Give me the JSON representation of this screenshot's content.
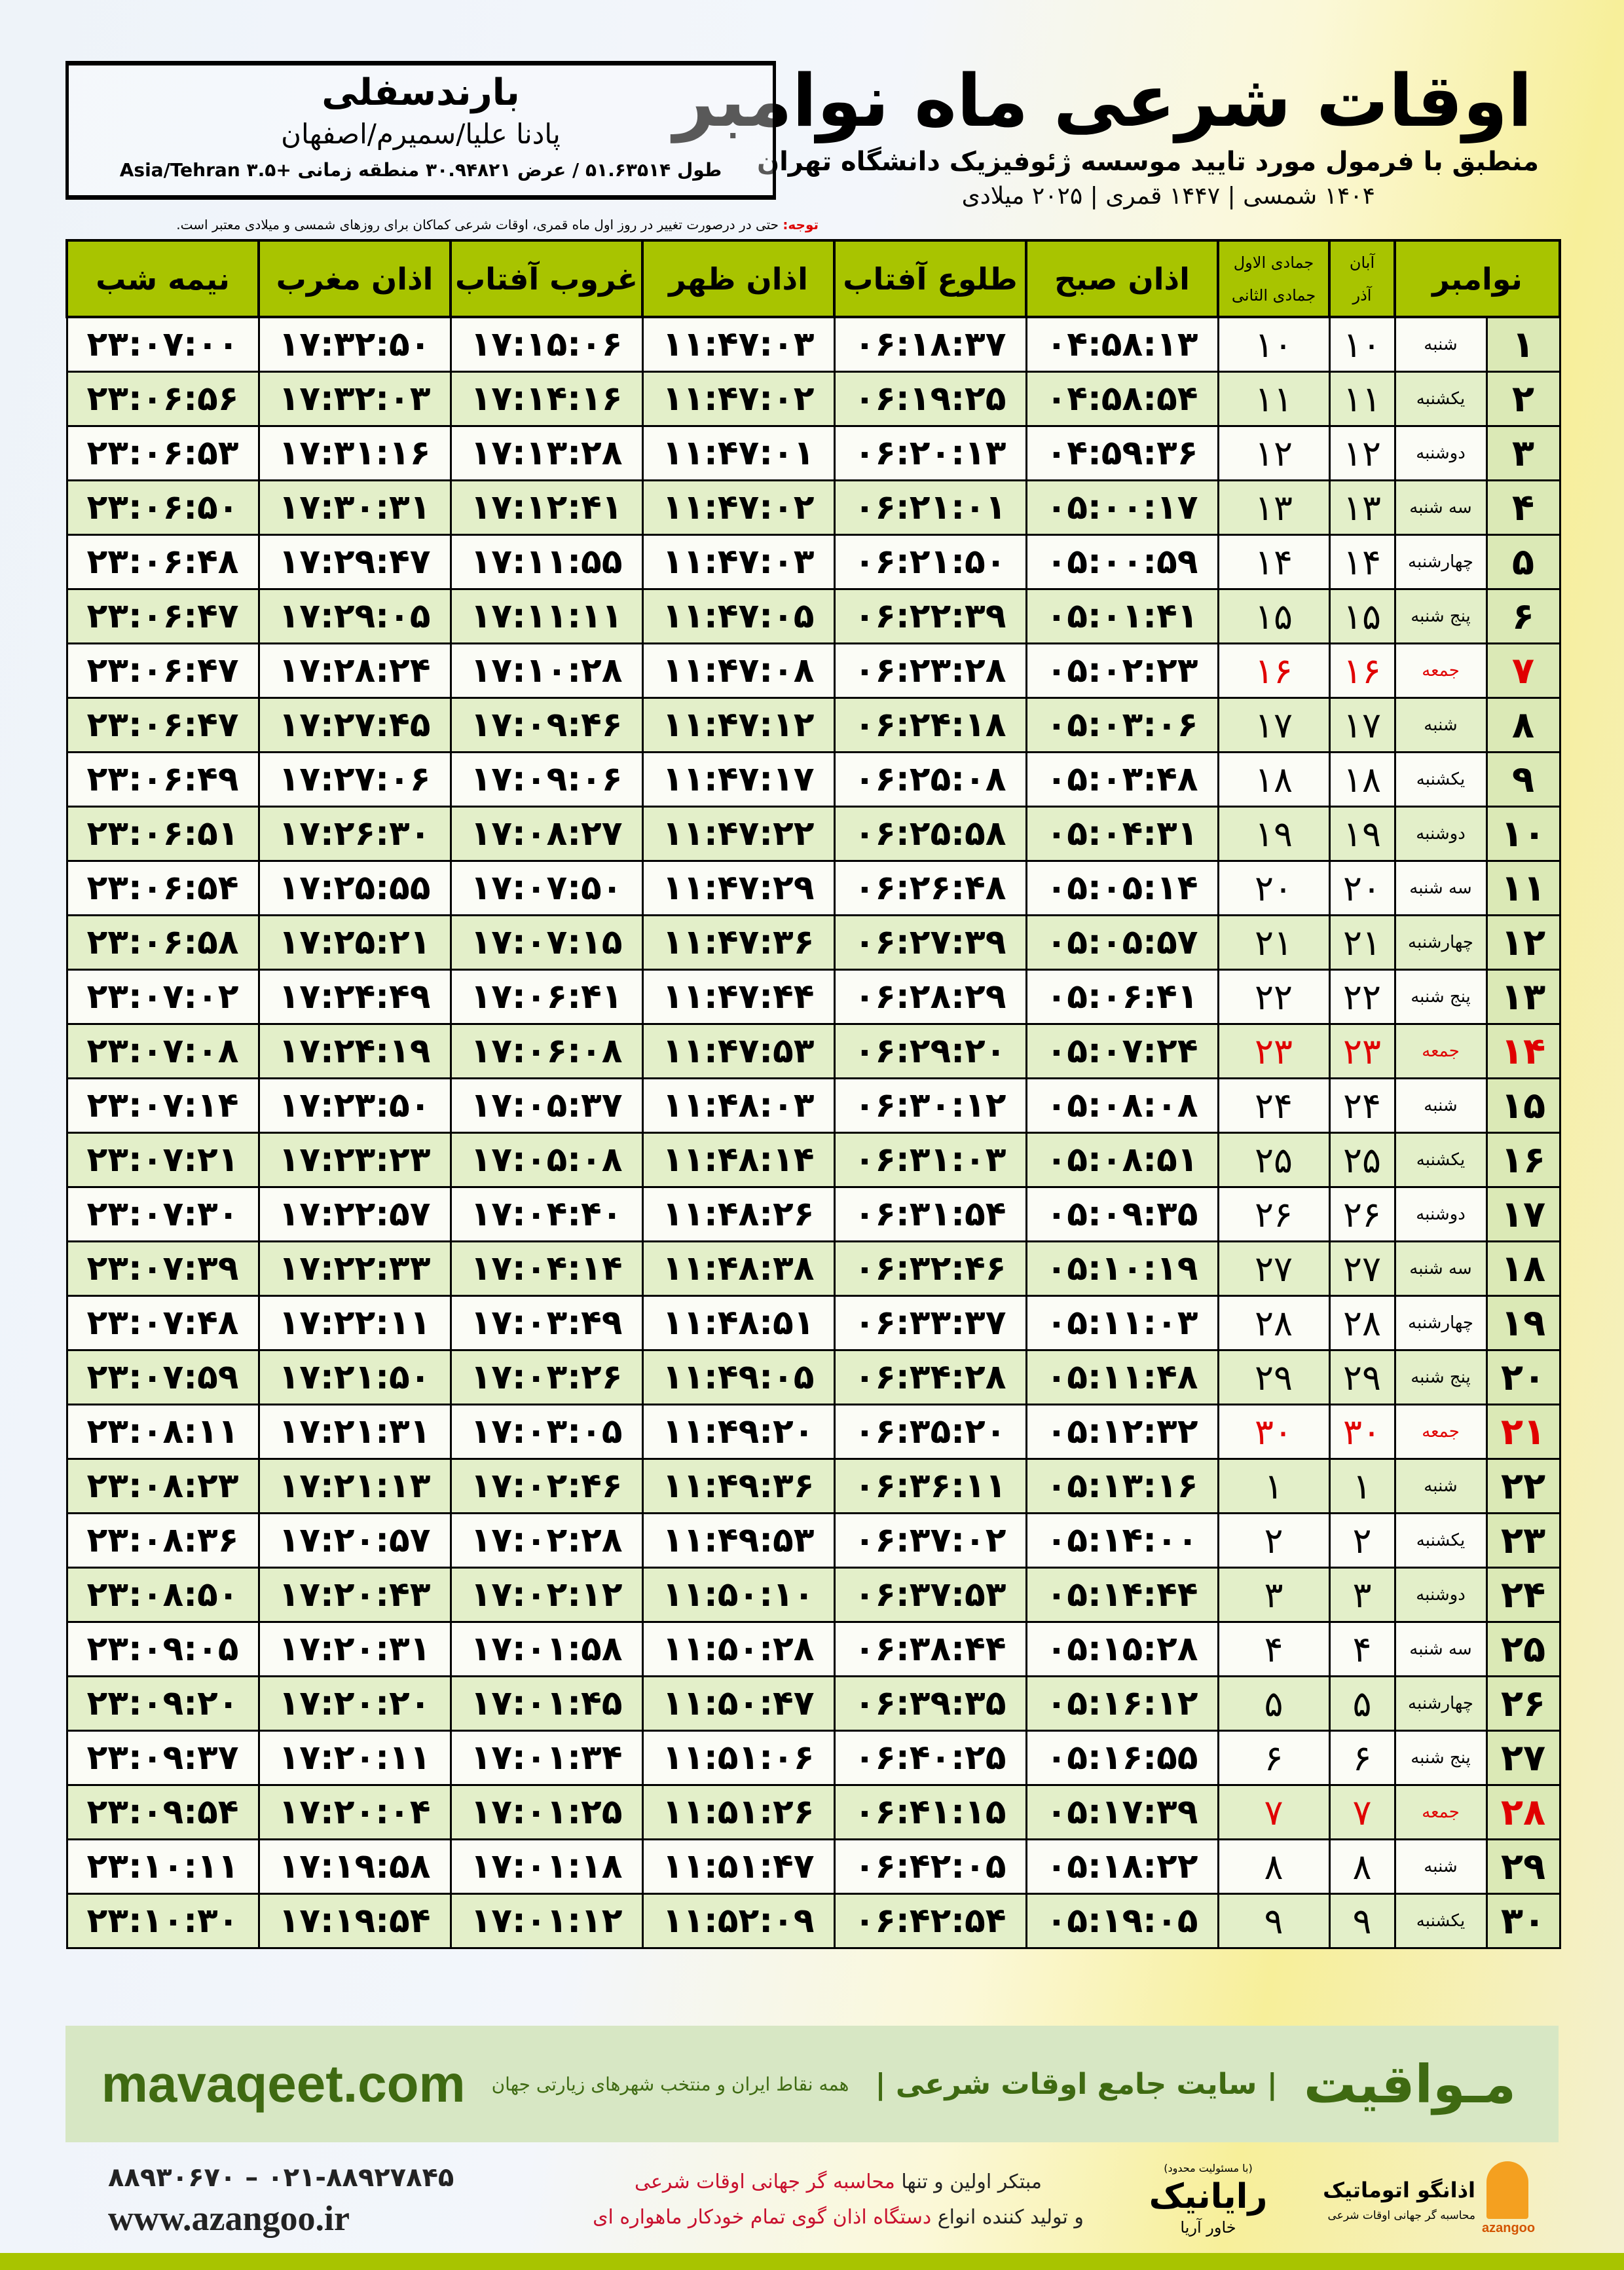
{
  "header": {
    "title": "اوقات شرعی ماه نوامبر",
    "subtitle": "منطبق با فرمول مورد تایید موسسه ژئوفیزیک دانشگاه تهران",
    "dateline": "۱۴۰۴ شمسی | ۱۴۴۷ قمری | ۲۰۲۵ میلادی"
  },
  "location": {
    "name": "بارندسفلی",
    "region": "پادنا علیا/سمیرم/اصفهان",
    "coords": "طول ۵۱.۶۳۵۱۴ / عرض ۳۰.۹۴۸۲۱ منطقه زمانی +۳.۵ Asia/Tehran"
  },
  "note": {
    "label": "توجه:",
    "text": " حتی در درصورت تغییر در روز اول ماه قمری، اوقات شرعی کماکان برای روزهای شمسی و میلادی معتبر است."
  },
  "colors": {
    "header_green": "#a8c400",
    "friday_red": "#e00000",
    "banner_green": "#3f6a12"
  },
  "table": {
    "headers": {
      "month": "نوامبر",
      "aban": "آبان",
      "azar": "آذر",
      "jamadi1": "جمادی الاول",
      "jamadi2": "جمادی الثانی",
      "subh": "اذان صبح",
      "tolu": "طلوع آفتاب",
      "zohr": "اذان ظهر",
      "ghorub": "غروب آفتاب",
      "maghreb": "اذان مغرب",
      "nime": "نیمه شب"
    },
    "rows": [
      [
        "۱",
        "شنبه",
        "۱۰",
        "۱۰",
        "۰۴:۵۸:۱۳",
        "۰۶:۱۸:۳۷",
        "۱۱:۴۷:۰۳",
        "۱۷:۱۵:۰۶",
        "۱۷:۳۲:۵۰",
        "۲۳:۰۷:۰۰"
      ],
      [
        "۲",
        "یکشنبه",
        "۱۱",
        "۱۱",
        "۰۴:۵۸:۵۴",
        "۰۶:۱۹:۲۵",
        "۱۱:۴۷:۰۲",
        "۱۷:۱۴:۱۶",
        "۱۷:۳۲:۰۳",
        "۲۳:۰۶:۵۶"
      ],
      [
        "۳",
        "دوشنبه",
        "۱۲",
        "۱۲",
        "۰۴:۵۹:۳۶",
        "۰۶:۲۰:۱۳",
        "۱۱:۴۷:۰۱",
        "۱۷:۱۳:۲۸",
        "۱۷:۳۱:۱۶",
        "۲۳:۰۶:۵۳"
      ],
      [
        "۴",
        "سه شنبه",
        "۱۳",
        "۱۳",
        "۰۵:۰۰:۱۷",
        "۰۶:۲۱:۰۱",
        "۱۱:۴۷:۰۲",
        "۱۷:۱۲:۴۱",
        "۱۷:۳۰:۳۱",
        "۲۳:۰۶:۵۰"
      ],
      [
        "۵",
        "چهارشنبه",
        "۱۴",
        "۱۴",
        "۰۵:۰۰:۵۹",
        "۰۶:۲۱:۵۰",
        "۱۱:۴۷:۰۳",
        "۱۷:۱۱:۵۵",
        "۱۷:۲۹:۴۷",
        "۲۳:۰۶:۴۸"
      ],
      [
        "۶",
        "پنج شنبه",
        "۱۵",
        "۱۵",
        "۰۵:۰۱:۴۱",
        "۰۶:۲۲:۳۹",
        "۱۱:۴۷:۰۵",
        "۱۷:۱۱:۱۱",
        "۱۷:۲۹:۰۵",
        "۲۳:۰۶:۴۷"
      ],
      [
        "۷",
        "جمعه",
        "۱۶",
        "۱۶",
        "۰۵:۰۲:۲۳",
        "۰۶:۲۳:۲۸",
        "۱۱:۴۷:۰۸",
        "۱۷:۱۰:۲۸",
        "۱۷:۲۸:۲۴",
        "۲۳:۰۶:۴۷"
      ],
      [
        "۸",
        "شنبه",
        "۱۷",
        "۱۷",
        "۰۵:۰۳:۰۶",
        "۰۶:۲۴:۱۸",
        "۱۱:۴۷:۱۲",
        "۱۷:۰۹:۴۶",
        "۱۷:۲۷:۴۵",
        "۲۳:۰۶:۴۷"
      ],
      [
        "۹",
        "یکشنبه",
        "۱۸",
        "۱۸",
        "۰۵:۰۳:۴۸",
        "۰۶:۲۵:۰۸",
        "۱۱:۴۷:۱۷",
        "۱۷:۰۹:۰۶",
        "۱۷:۲۷:۰۶",
        "۲۳:۰۶:۴۹"
      ],
      [
        "۱۰",
        "دوشنبه",
        "۱۹",
        "۱۹",
        "۰۵:۰۴:۳۱",
        "۰۶:۲۵:۵۸",
        "۱۱:۴۷:۲۲",
        "۱۷:۰۸:۲۷",
        "۱۷:۲۶:۳۰",
        "۲۳:۰۶:۵۱"
      ],
      [
        "۱۱",
        "سه شنبه",
        "۲۰",
        "۲۰",
        "۰۵:۰۵:۱۴",
        "۰۶:۲۶:۴۸",
        "۱۱:۴۷:۲۹",
        "۱۷:۰۷:۵۰",
        "۱۷:۲۵:۵۵",
        "۲۳:۰۶:۵۴"
      ],
      [
        "۱۲",
        "چهارشنبه",
        "۲۱",
        "۲۱",
        "۰۵:۰۵:۵۷",
        "۰۶:۲۷:۳۹",
        "۱۱:۴۷:۳۶",
        "۱۷:۰۷:۱۵",
        "۱۷:۲۵:۲۱",
        "۲۳:۰۶:۵۸"
      ],
      [
        "۱۳",
        "پنج شنبه",
        "۲۲",
        "۲۲",
        "۰۵:۰۶:۴۱",
        "۰۶:۲۸:۲۹",
        "۱۱:۴۷:۴۴",
        "۱۷:۰۶:۴۱",
        "۱۷:۲۴:۴۹",
        "۲۳:۰۷:۰۲"
      ],
      [
        "۱۴",
        "جمعه",
        "۲۳",
        "۲۳",
        "۰۵:۰۷:۲۴",
        "۰۶:۲۹:۲۰",
        "۱۱:۴۷:۵۳",
        "۱۷:۰۶:۰۸",
        "۱۷:۲۴:۱۹",
        "۲۳:۰۷:۰۸"
      ],
      [
        "۱۵",
        "شنبه",
        "۲۴",
        "۲۴",
        "۰۵:۰۸:۰۸",
        "۰۶:۳۰:۱۲",
        "۱۱:۴۸:۰۳",
        "۱۷:۰۵:۳۷",
        "۱۷:۲۳:۵۰",
        "۲۳:۰۷:۱۴"
      ],
      [
        "۱۶",
        "یکشنبه",
        "۲۵",
        "۲۵",
        "۰۵:۰۸:۵۱",
        "۰۶:۳۱:۰۳",
        "۱۱:۴۸:۱۴",
        "۱۷:۰۵:۰۸",
        "۱۷:۲۳:۲۳",
        "۲۳:۰۷:۲۱"
      ],
      [
        "۱۷",
        "دوشنبه",
        "۲۶",
        "۲۶",
        "۰۵:۰۹:۳۵",
        "۰۶:۳۱:۵۴",
        "۱۱:۴۸:۲۶",
        "۱۷:۰۴:۴۰",
        "۱۷:۲۲:۵۷",
        "۲۳:۰۷:۳۰"
      ],
      [
        "۱۸",
        "سه شنبه",
        "۲۷",
        "۲۷",
        "۰۵:۱۰:۱۹",
        "۰۶:۳۲:۴۶",
        "۱۱:۴۸:۳۸",
        "۱۷:۰۴:۱۴",
        "۱۷:۲۲:۳۳",
        "۲۳:۰۷:۳۹"
      ],
      [
        "۱۹",
        "چهارشنبه",
        "۲۸",
        "۲۸",
        "۰۵:۱۱:۰۳",
        "۰۶:۳۳:۳۷",
        "۱۱:۴۸:۵۱",
        "۱۷:۰۳:۴۹",
        "۱۷:۲۲:۱۱",
        "۲۳:۰۷:۴۸"
      ],
      [
        "۲۰",
        "پنج شنبه",
        "۲۹",
        "۲۹",
        "۰۵:۱۱:۴۸",
        "۰۶:۳۴:۲۸",
        "۱۱:۴۹:۰۵",
        "۱۷:۰۳:۲۶",
        "۱۷:۲۱:۵۰",
        "۲۳:۰۷:۵۹"
      ],
      [
        "۲۱",
        "جمعه",
        "۳۰",
        "۳۰",
        "۰۵:۱۲:۳۲",
        "۰۶:۳۵:۲۰",
        "۱۱:۴۹:۲۰",
        "۱۷:۰۳:۰۵",
        "۱۷:۲۱:۳۱",
        "۲۳:۰۸:۱۱"
      ],
      [
        "۲۲",
        "شنبه",
        "۱",
        "۱",
        "۰۵:۱۳:۱۶",
        "۰۶:۳۶:۱۱",
        "۱۱:۴۹:۳۶",
        "۱۷:۰۲:۴۶",
        "۱۷:۲۱:۱۳",
        "۲۳:۰۸:۲۳"
      ],
      [
        "۲۳",
        "یکشنبه",
        "۲",
        "۲",
        "۰۵:۱۴:۰۰",
        "۰۶:۳۷:۰۲",
        "۱۱:۴۹:۵۳",
        "۱۷:۰۲:۲۸",
        "۱۷:۲۰:۵۷",
        "۲۳:۰۸:۳۶"
      ],
      [
        "۲۴",
        "دوشنبه",
        "۳",
        "۳",
        "۰۵:۱۴:۴۴",
        "۰۶:۳۷:۵۳",
        "۱۱:۵۰:۱۰",
        "۱۷:۰۲:۱۲",
        "۱۷:۲۰:۴۳",
        "۲۳:۰۸:۵۰"
      ],
      [
        "۲۵",
        "سه شنبه",
        "۴",
        "۴",
        "۰۵:۱۵:۲۸",
        "۰۶:۳۸:۴۴",
        "۱۱:۵۰:۲۸",
        "۱۷:۰۱:۵۸",
        "۱۷:۲۰:۳۱",
        "۲۳:۰۹:۰۵"
      ],
      [
        "۲۶",
        "چهارشنبه",
        "۵",
        "۵",
        "۰۵:۱۶:۱۲",
        "۰۶:۳۹:۳۵",
        "۱۱:۵۰:۴۷",
        "۱۷:۰۱:۴۵",
        "۱۷:۲۰:۲۰",
        "۲۳:۰۹:۲۰"
      ],
      [
        "۲۷",
        "پنج شنبه",
        "۶",
        "۶",
        "۰۵:۱۶:۵۵",
        "۰۶:۴۰:۲۵",
        "۱۱:۵۱:۰۶",
        "۱۷:۰۱:۳۴",
        "۱۷:۲۰:۱۱",
        "۲۳:۰۹:۳۷"
      ],
      [
        "۲۸",
        "جمعه",
        "۷",
        "۷",
        "۰۵:۱۷:۳۹",
        "۰۶:۴۱:۱۵",
        "۱۱:۵۱:۲۶",
        "۱۷:۰۱:۲۵",
        "۱۷:۲۰:۰۴",
        "۲۳:۰۹:۵۴"
      ],
      [
        "۲۹",
        "شنبه",
        "۸",
        "۸",
        "۰۵:۱۸:۲۲",
        "۰۶:۴۲:۰۵",
        "۱۱:۵۱:۴۷",
        "۱۷:۰۱:۱۸",
        "۱۷:۱۹:۵۸",
        "۲۳:۱۰:۱۱"
      ],
      [
        "۳۰",
        "یکشنبه",
        "۹",
        "۹",
        "۰۵:۱۹:۰۵",
        "۰۶:۴۲:۵۴",
        "۱۱:۵۲:۰۹",
        "۱۷:۰۱:۱۲",
        "۱۷:۱۹:۵۴",
        "۲۳:۱۰:۳۰"
      ]
    ]
  },
  "banner": {
    "brand": "مـواقیت",
    "slogan": "| سایت جامع اوقات شرعی |",
    "sub": "همه نقاط ایران و منتخب شهرهای زیارتی جهان",
    "site": "mavaqeet.com"
  },
  "footer": {
    "phone": "۰۲۱-۸۸۹۲۷۸۴۵ – ۸۸۹۳۰۶۷۰",
    "web": "www.azangoo.ir",
    "promo1a": "مبتکر اولین و تنها ",
    "promo1b": "محاسبه گر جهانی اوقات شرعی",
    "promo2a": "و تولید کننده انواع ",
    "promo2b": "دستگاه اذان گوی تمام خودکار ماهواره ای",
    "rayanik_small": "(با مسئولیت محدود)",
    "rayanik": "رایانیک",
    "rayanik_sub": "خاور آریا",
    "azangoo": "اذانگو اتوماتیک",
    "azangoo_sub": "محاسبه گر جهانی اوقات شرعی",
    "azangoo_en": "azangoo"
  }
}
